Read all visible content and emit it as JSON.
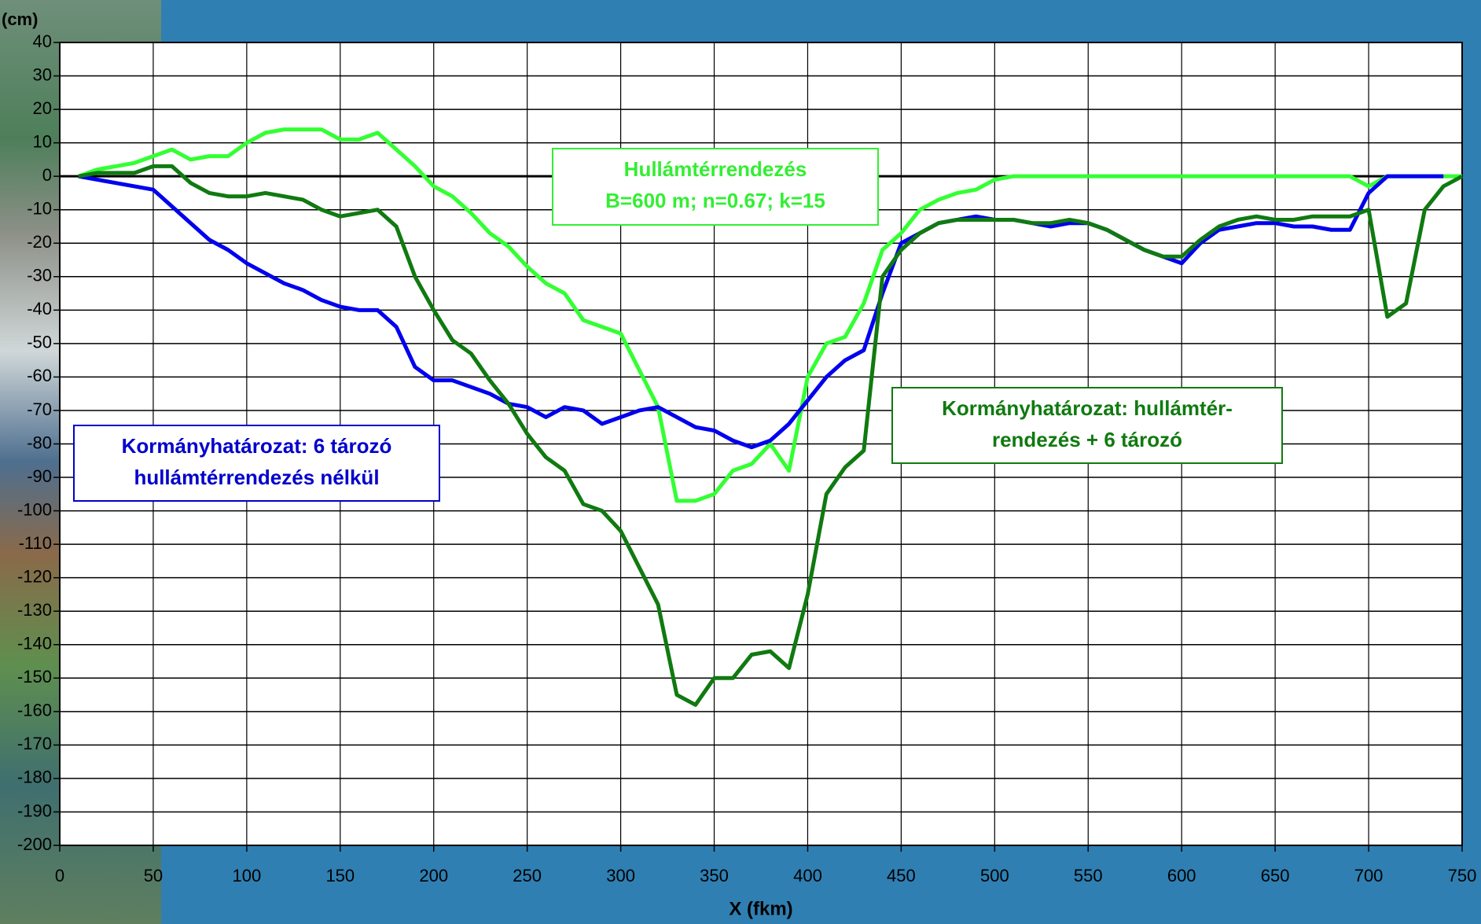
{
  "chart_data": {
    "type": "line",
    "y_label": "(cm)",
    "x_label": "X (fkm)",
    "xlim": [
      0,
      750
    ],
    "xticks": [
      0,
      50,
      100,
      150,
      200,
      250,
      300,
      350,
      400,
      450,
      500,
      550,
      600,
      650,
      700,
      750
    ],
    "ylim": [
      -200,
      40
    ],
    "yticks": [
      40,
      30,
      20,
      10,
      0,
      -10,
      -20,
      -30,
      -40,
      -50,
      -60,
      -70,
      -80,
      -90,
      -100,
      -110,
      -120,
      -130,
      -140,
      -150,
      -160,
      -170,
      -180,
      -190,
      -200
    ],
    "grid": true,
    "x": [
      10,
      20,
      30,
      40,
      50,
      60,
      70,
      80,
      90,
      100,
      110,
      120,
      130,
      140,
      150,
      160,
      170,
      180,
      190,
      200,
      210,
      220,
      230,
      240,
      250,
      260,
      270,
      280,
      290,
      300,
      310,
      320,
      330,
      340,
      350,
      360,
      370,
      380,
      390,
      400,
      410,
      420,
      430,
      440,
      450,
      460,
      470,
      480,
      490,
      500,
      510,
      520,
      530,
      540,
      550,
      560,
      570,
      580,
      590,
      600,
      610,
      620,
      630,
      640,
      650,
      660,
      670,
      680,
      690,
      700,
      710,
      720,
      730,
      740,
      750
    ],
    "series": [
      {
        "color": "#33ff33",
        "values": [
          0,
          2,
          3,
          4,
          6,
          8,
          5,
          6,
          6,
          10,
          13,
          14,
          14,
          14,
          11,
          11,
          13,
          8,
          3,
          -3,
          -6,
          -11,
          -17,
          -21,
          -27,
          -32,
          -35,
          -43,
          -45,
          -47,
          -58,
          -69,
          -97,
          -97,
          -95,
          -88,
          -86,
          -80,
          -88,
          -60,
          -50,
          -48,
          -38,
          -22,
          -17,
          -10,
          -7,
          -5,
          -4,
          -1,
          0,
          0,
          0,
          0,
          0,
          0,
          0,
          0,
          0,
          0,
          0,
          0,
          0,
          0,
          0,
          0,
          0,
          0,
          0,
          -3,
          0,
          0,
          0,
          0,
          0
        ]
      },
      {
        "color": "#0000ee",
        "values": [
          0,
          -1,
          -2,
          -3,
          -4,
          -9,
          -14,
          -19,
          -22,
          -26,
          -29,
          -32,
          -34,
          -37,
          -39,
          -40,
          -40,
          -45,
          -57,
          -61,
          -61,
          -63,
          -65,
          -68,
          -69,
          -72,
          -69,
          -70,
          -74,
          -72,
          -70,
          -69,
          -72,
          -75,
          -76,
          -79,
          -81,
          -79,
          -74,
          -67,
          -60,
          -55,
          -52,
          -35,
          -20,
          -17,
          -14,
          -13,
          -12,
          -13,
          -13,
          -14,
          -15,
          -14,
          -14,
          -16,
          -19,
          -22,
          -24,
          -26,
          -20,
          -16,
          -15,
          -14,
          -14,
          -15,
          -15,
          -16,
          -16,
          -5,
          0,
          0,
          0,
          0,
          null
        ]
      },
      {
        "color": "#107a10",
        "values": [
          0,
          1,
          1,
          1,
          3,
          3,
          -2,
          -5,
          -6,
          -6,
          -5,
          -6,
          -7,
          -10,
          -12,
          -11,
          -10,
          -15,
          -30,
          -40,
          -49,
          -53,
          -61,
          -68,
          -77,
          -84,
          -88,
          -98,
          -100,
          -106,
          -117,
          -128,
          -155,
          -158,
          -150,
          -150,
          -143,
          -142,
          -147,
          -125,
          -95,
          -87,
          -82,
          -30,
          -22,
          -17,
          -14,
          -13,
          -13,
          -13,
          -13,
          -14,
          -14,
          -13,
          -14,
          -16,
          -19,
          -22,
          -24,
          -24,
          -19,
          -15,
          -13,
          -12,
          -13,
          -13,
          -12,
          -12,
          -12,
          -10,
          -42,
          -38,
          -10,
          -3,
          0
        ]
      }
    ],
    "annotations": [
      {
        "color": "#33ee33",
        "lines": [
          "Hullámtérrendezés",
          "B=600 m; n=0.67; k=15"
        ]
      },
      {
        "color": "#0000cc",
        "lines": [
          "Kormányhatározat: 6 tározó",
          "hullámtérrendezés nélkül"
        ]
      },
      {
        "color": "#107a10",
        "lines": [
          "Kormányhatározat: hullámtér-",
          "rendezés + 6 tározó"
        ]
      }
    ]
  }
}
